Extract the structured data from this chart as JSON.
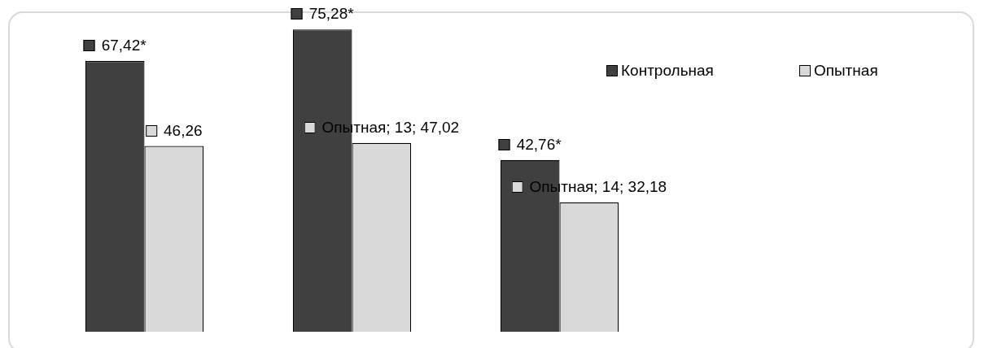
{
  "chart_data": {
    "type": "bar",
    "categories": [
      null,
      null,
      null
    ],
    "series": [
      {
        "name": "Контрольная",
        "color": "#404040",
        "values": [
          67.42,
          75.28,
          42.76
        ],
        "value_labels": [
          "67,42*",
          "75,28*",
          "42,76*"
        ]
      },
      {
        "name": "Опытная",
        "color": "#d9d9d9",
        "values": [
          46.26,
          47.02,
          32.18
        ],
        "value_labels": [
          "46,26",
          "Опытная; 13; 47,02",
          "Опытная; 14; 32,18"
        ]
      }
    ],
    "legend": "top right"
  }
}
